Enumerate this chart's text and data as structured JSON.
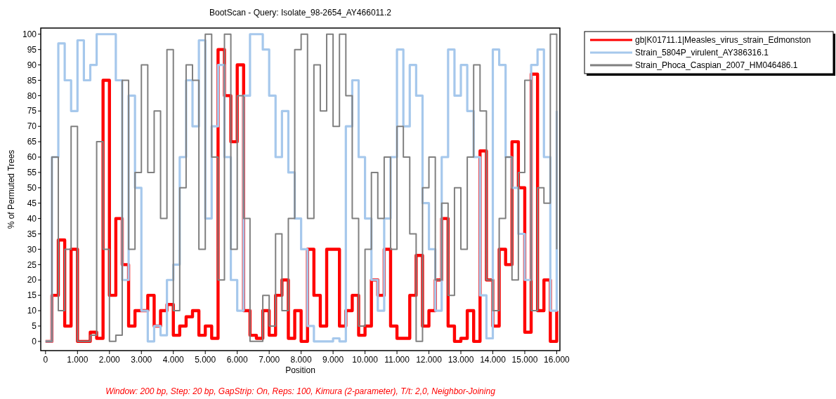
{
  "chart_data": {
    "type": "step",
    "title": "BootScan - Query: Isolate_98-2654_AY466011.2",
    "xlabel": "Position",
    "ylabel": "% of Permuted Trees",
    "annotations": [
      "Window: 200 bp, Step: 20 bp, GapStrip: On, Reps: 100, Kimura (2-parameter), T/t: 2,0, Neighbor-Joining"
    ],
    "x": [
      0,
      0.2,
      0.4,
      0.6,
      0.8,
      1,
      1.2,
      1.4,
      1.6,
      1.8,
      2,
      2.2,
      2.4,
      2.6,
      2.8,
      3,
      3.2,
      3.4,
      3.6,
      3.8,
      4,
      4.2,
      4.4,
      4.6,
      4.8,
      5,
      5.2,
      5.4,
      5.6,
      5.8,
      6,
      6.2,
      6.4,
      6.6,
      6.8,
      7,
      7.2,
      7.4,
      7.6,
      7.8,
      8,
      8.2,
      8.4,
      8.6,
      8.8,
      9,
      9.2,
      9.4,
      9.6,
      9.8,
      10,
      10.2,
      10.4,
      10.6,
      10.8,
      11,
      11.2,
      11.4,
      11.6,
      11.8,
      12,
      12.2,
      12.4,
      12.6,
      12.8,
      13,
      13.2,
      13.4,
      13.6,
      13.8,
      14,
      14.2,
      14.4,
      14.6,
      14.8,
      15,
      15.2,
      15.4,
      15.6,
      15.8,
      16
    ],
    "series": [
      {
        "name": "gb|K01711.1|Measles_virus_strain_Edmonston",
        "color": "#ff0000",
        "values": [
          0,
          15,
          33,
          5,
          30,
          0,
          0,
          3,
          1,
          85,
          15,
          40,
          25,
          5,
          10,
          10,
          15,
          5,
          10,
          12,
          2,
          5,
          8,
          10,
          2,
          5,
          1,
          95,
          80,
          65,
          90,
          10,
          2,
          1,
          10,
          2,
          15,
          20,
          1,
          10,
          0,
          30,
          15,
          5,
          30,
          30,
          5,
          10,
          15,
          2,
          5,
          20,
          15,
          30,
          5,
          1,
          1,
          15,
          28,
          5,
          10,
          20,
          40,
          5,
          0,
          1,
          10,
          0,
          62,
          20,
          5,
          30,
          25,
          65,
          50,
          3,
          87,
          10,
          20,
          0,
          10
        ]
      },
      {
        "name": "Strain_5804P_virulent_AY386316.1",
        "color": "#a6c8ec",
        "values": [
          0,
          60,
          97,
          85,
          75,
          98,
          85,
          90,
          100,
          100,
          100,
          85,
          20,
          80,
          50,
          10,
          0,
          5,
          2,
          20,
          25,
          60,
          85,
          70,
          98,
          40,
          70,
          90,
          60,
          20,
          10,
          80,
          100,
          100,
          95,
          80,
          60,
          75,
          55,
          40,
          30,
          5,
          0,
          0,
          0,
          1,
          0,
          70,
          85,
          60,
          40,
          20,
          10,
          40,
          60,
          95,
          70,
          90,
          80,
          45,
          30,
          10,
          60,
          95,
          80,
          90,
          75,
          60,
          15,
          1,
          95,
          90,
          60,
          50,
          35,
          20,
          90,
          95,
          60,
          10,
          75
        ]
      },
      {
        "name": "Strain_Phoca_Caspian_2007_HM046486.1",
        "color": "#808080",
        "values": [
          0,
          60,
          10,
          30,
          70,
          0,
          0,
          2,
          65,
          30,
          0,
          2,
          85,
          30,
          55,
          90,
          55,
          75,
          40,
          95,
          10,
          50,
          90,
          85,
          30,
          100,
          60,
          20,
          100,
          30,
          80,
          40,
          0,
          0,
          15,
          5,
          35,
          10,
          40,
          95,
          100,
          40,
          90,
          75,
          100,
          70,
          100,
          80,
          40,
          5,
          30,
          55,
          40,
          60,
          30,
          70,
          60,
          35,
          0,
          50,
          60,
          20,
          45,
          15,
          50,
          30,
          60,
          90,
          75,
          20,
          10,
          40,
          60,
          20,
          55,
          85,
          10,
          50,
          45,
          100,
          30
        ]
      }
    ],
    "xlim": [
      -0.15,
      16.1
    ],
    "ylim": [
      -3,
      102
    ],
    "xticks": [
      0,
      {
        "value": 1,
        "label": "1.000"
      },
      {
        "value": 2,
        "label": "2.000"
      },
      {
        "value": 3,
        "label": "3.000"
      },
      {
        "value": 4,
        "label": "4.000"
      },
      {
        "value": 5,
        "label": "5.000"
      },
      {
        "value": 6,
        "label": "6.000"
      },
      {
        "value": 7,
        "label": "7.000"
      },
      {
        "value": 8,
        "label": "8.000"
      },
      {
        "value": 9,
        "label": "9.000"
      },
      {
        "value": 10,
        "label": "10.000"
      },
      {
        "value": 11,
        "label": "11.000"
      },
      {
        "value": 12,
        "label": "12.000"
      },
      {
        "value": 13,
        "label": "13.000"
      },
      {
        "value": 14,
        "label": "14.000"
      },
      {
        "value": 15,
        "label": "15.000"
      },
      {
        "value": 16,
        "label": "16.000"
      }
    ],
    "yticks": [
      0,
      5,
      10,
      15,
      20,
      25,
      30,
      35,
      40,
      45,
      50,
      55,
      60,
      65,
      70,
      75,
      80,
      85,
      90,
      95,
      100
    ],
    "legend": "right",
    "grid": false
  }
}
